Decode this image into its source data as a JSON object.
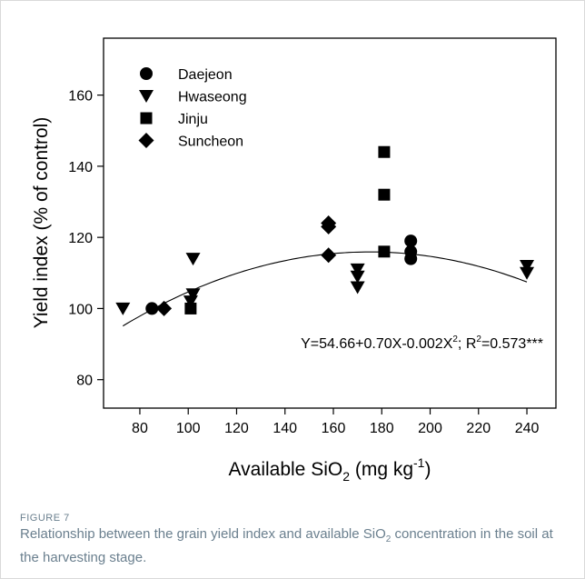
{
  "chart_data": {
    "type": "scatter",
    "xlabel": {
      "main": "Available SiO",
      "sub": "2",
      "unit": " (mg kg",
      "sup": "-1",
      "end": ")"
    },
    "ylabel": "Yield index (% of control)",
    "xlim": [
      65,
      252
    ],
    "ylim": [
      72,
      176
    ],
    "xticks": [
      80,
      100,
      120,
      140,
      160,
      180,
      200,
      220,
      240
    ],
    "yticks": [
      80,
      100,
      120,
      140,
      160
    ],
    "grid": false,
    "legend_position": "top-left",
    "series": [
      {
        "name": "Daejeon",
        "marker": "circle",
        "points": [
          [
            85,
            100
          ],
          [
            192,
            119
          ],
          [
            192,
            116
          ],
          [
            192,
            114
          ]
        ]
      },
      {
        "name": "Hwaseong",
        "marker": "triangle-down",
        "points": [
          [
            73,
            100
          ],
          [
            102,
            114
          ],
          [
            102,
            104
          ],
          [
            101,
            102
          ],
          [
            170,
            111
          ],
          [
            170,
            109
          ],
          [
            170,
            106
          ],
          [
            240,
            112
          ],
          [
            240,
            110
          ]
        ]
      },
      {
        "name": "Jinju",
        "marker": "square",
        "points": [
          [
            101,
            100
          ],
          [
            181,
            144
          ],
          [
            181,
            132
          ],
          [
            181,
            116
          ]
        ]
      },
      {
        "name": "Suncheon",
        "marker": "diamond",
        "points": [
          [
            90,
            100
          ],
          [
            158,
            124
          ],
          [
            158,
            123
          ],
          [
            158,
            115
          ]
        ]
      }
    ],
    "fit": {
      "intercept": 54.66,
      "b1": 0.7,
      "b2": -0.002,
      "x_from": 73,
      "x_to": 240
    },
    "equation": {
      "main": "Y=54.66+0.70X-0.002X",
      "sup1": "2",
      "mid": "; R",
      "sup2": "2",
      "end": "=0.573***"
    }
  },
  "caption": {
    "label": "FIGURE 7",
    "text_before": "Relationship between the grain yield index and available SiO",
    "text_sub": "2",
    "text_after": " concentration in the soil at the harvesting stage."
  }
}
